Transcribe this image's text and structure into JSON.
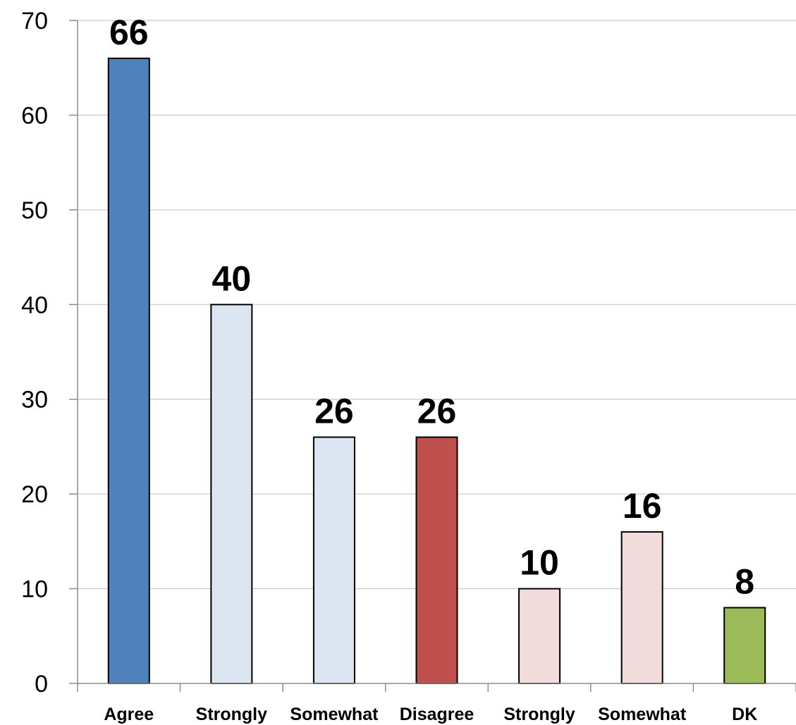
{
  "chart_data": {
    "type": "bar",
    "title": "",
    "xlabel": "",
    "ylabel": "",
    "categories": [
      "Agree",
      "Strongly",
      "Somewhat",
      "Disagree",
      "Strongly",
      "Somewhat",
      "DK"
    ],
    "values": [
      66,
      40,
      26,
      26,
      10,
      16,
      8
    ],
    "data_labels": [
      "66",
      "40",
      "26",
      "26",
      "10",
      "16",
      "8"
    ],
    "colors": [
      "#4f81bd",
      "#dce6f2",
      "#dce6f2",
      "#c0504d",
      "#f2dcdb",
      "#f2dcdb",
      "#9bbb59"
    ],
    "ylim": [
      0,
      70
    ],
    "yticks": [
      0,
      10,
      20,
      30,
      40,
      50,
      60,
      70
    ],
    "ytick_labels": [
      "0",
      "10",
      "20",
      "30",
      "40",
      "50",
      "60",
      "70"
    ],
    "grid": true,
    "legend": "none"
  }
}
